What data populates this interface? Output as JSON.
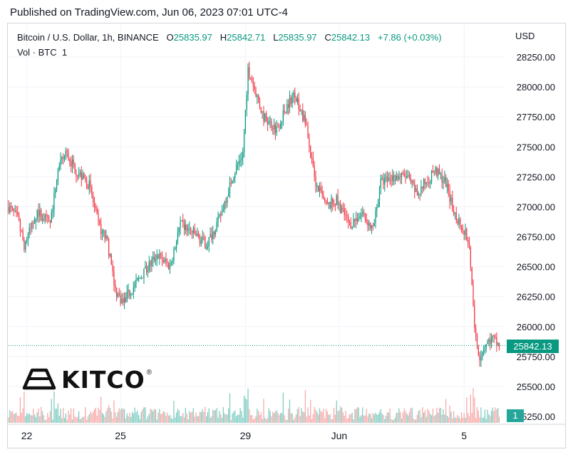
{
  "header": {
    "published_text": "Published on TradingView.com, Jun 06, 2023 07:01 UTC-4"
  },
  "legend": {
    "symbol": "Bitcoin / U.S. Dollar, 1h, BINANCE",
    "o_label": "O",
    "o_value": "25835.97",
    "h_label": "H",
    "h_value": "25842.71",
    "l_label": "L",
    "l_value": "25835.97",
    "c_label": "C",
    "c_value": "25842.13",
    "change": "+7.86 (+0.03%)",
    "vol_label": "Vol · BTC",
    "vol_value": "1"
  },
  "currency": "USD",
  "last_price_tag": "25842.13",
  "volume_tag": "1",
  "brand": {
    "name": "KITCO",
    "mark": "®"
  },
  "colors": {
    "up": "#089981",
    "down": "#f23645",
    "vol_up": "#7fccc1",
    "vol_down": "#f7a9a8",
    "grid": "#f0f3fa"
  },
  "chart_data": {
    "type": "candlestick",
    "title": "Bitcoin / U.S. Dollar, 1h, BINANCE",
    "ylabel": "USD",
    "ylim": [
      25250,
      28400
    ],
    "y_ticks": [
      "28250.00",
      "28000.00",
      "27750.00",
      "27500.00",
      "27250.00",
      "27000.00",
      "26750.00",
      "26500.00",
      "26250.00",
      "26000.00",
      "25750.00",
      "25500.00",
      "25250.00"
    ],
    "x_tick_labels": [
      "22",
      "25",
      "29",
      "Jun",
      "5"
    ],
    "x_tick_hours": [
      0,
      72,
      168,
      240,
      336
    ],
    "x_range_hours": [
      -14,
      366
    ],
    "last_price": 25842.13,
    "series_close": [
      {
        "h": -14,
        "close": 27000
      },
      {
        "h": -7,
        "close": 26900
      },
      {
        "h": -2,
        "close": 26680
      },
      {
        "h": 8,
        "close": 26960
      },
      {
        "h": 18,
        "close": 26860
      },
      {
        "h": 24,
        "close": 27300
      },
      {
        "h": 30,
        "close": 27450
      },
      {
        "h": 38,
        "close": 27300
      },
      {
        "h": 48,
        "close": 27180
      },
      {
        "h": 55,
        "close": 26850
      },
      {
        "h": 62,
        "close": 26700
      },
      {
        "h": 68,
        "close": 26300
      },
      {
        "h": 74,
        "close": 26200
      },
      {
        "h": 80,
        "close": 26300
      },
      {
        "h": 90,
        "close": 26450
      },
      {
        "h": 100,
        "close": 26600
      },
      {
        "h": 110,
        "close": 26500
      },
      {
        "h": 118,
        "close": 26850
      },
      {
        "h": 128,
        "close": 26780
      },
      {
        "h": 138,
        "close": 26680
      },
      {
        "h": 148,
        "close": 26900
      },
      {
        "h": 158,
        "close": 27250
      },
      {
        "h": 166,
        "close": 27450
      },
      {
        "h": 170,
        "close": 28150
      },
      {
        "h": 176,
        "close": 27950
      },
      {
        "h": 182,
        "close": 27750
      },
      {
        "h": 192,
        "close": 27650
      },
      {
        "h": 200,
        "close": 27850
      },
      {
        "h": 206,
        "close": 27950
      },
      {
        "h": 214,
        "close": 27700
      },
      {
        "h": 222,
        "close": 27200
      },
      {
        "h": 230,
        "close": 27000
      },
      {
        "h": 238,
        "close": 27050
      },
      {
        "h": 248,
        "close": 26850
      },
      {
        "h": 258,
        "close": 26950
      },
      {
        "h": 266,
        "close": 26800
      },
      {
        "h": 272,
        "close": 27200
      },
      {
        "h": 282,
        "close": 27250
      },
      {
        "h": 292,
        "close": 27250
      },
      {
        "h": 300,
        "close": 27100
      },
      {
        "h": 306,
        "close": 27200
      },
      {
        "h": 314,
        "close": 27300
      },
      {
        "h": 322,
        "close": 27200
      },
      {
        "h": 328,
        "close": 26950
      },
      {
        "h": 334,
        "close": 26850
      },
      {
        "h": 340,
        "close": 26700
      },
      {
        "h": 344,
        "close": 25950
      },
      {
        "h": 348,
        "close": 25750
      },
      {
        "h": 352,
        "close": 25850
      },
      {
        "h": 358,
        "close": 25900
      },
      {
        "h": 363,
        "close": 25842
      }
    ],
    "volume_note": "volume sub-panel under price (Vol · BTC)"
  }
}
